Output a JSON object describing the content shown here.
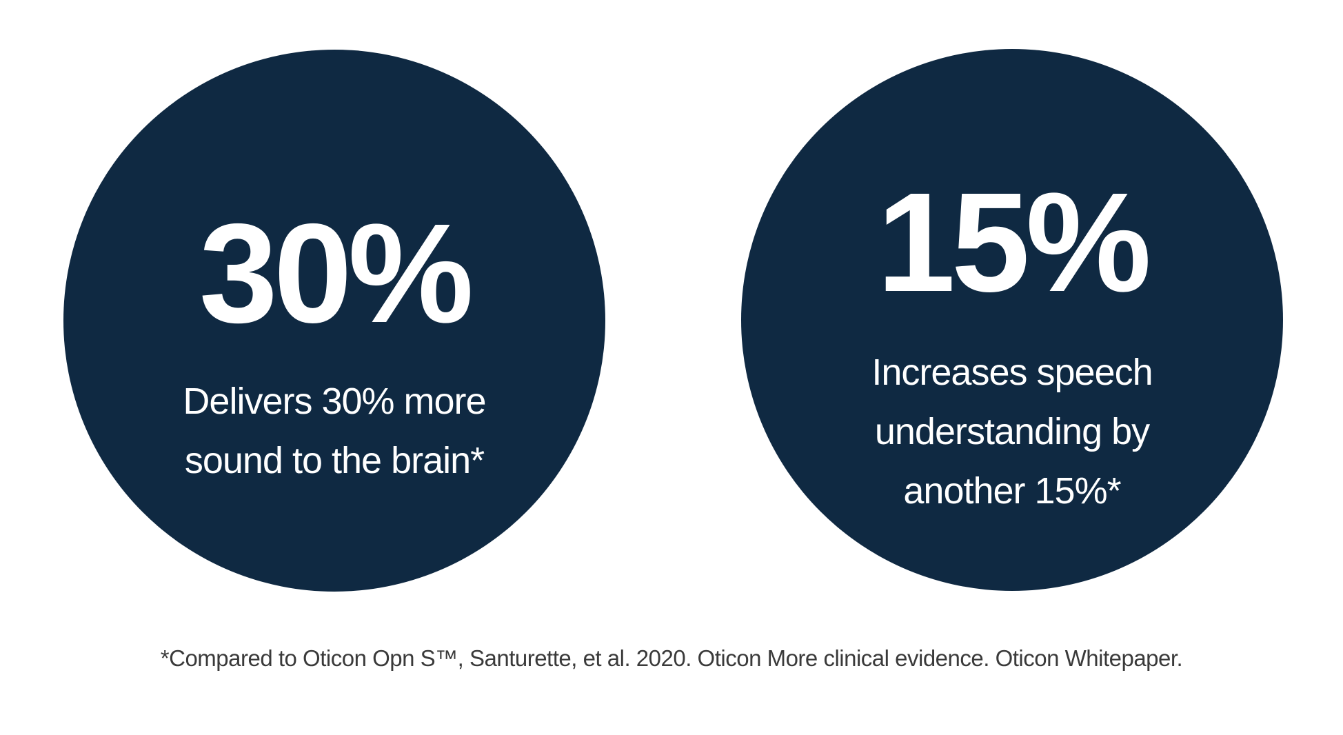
{
  "colors": {
    "circle": "#0f2942",
    "text": "#ffffff",
    "footnote": "#3a3a3a"
  },
  "stats": [
    {
      "value": "30%",
      "lines": [
        "Delivers 30% more",
        "sound to the brain*"
      ]
    },
    {
      "value": "15%",
      "lines": [
        "Increases speech",
        "understanding by",
        "another 15%*"
      ]
    }
  ],
  "footnote": "*Compared to Oticon Opn S™, Santurette, et al. 2020. Oticon More clinical evidence. Oticon Whitepaper."
}
